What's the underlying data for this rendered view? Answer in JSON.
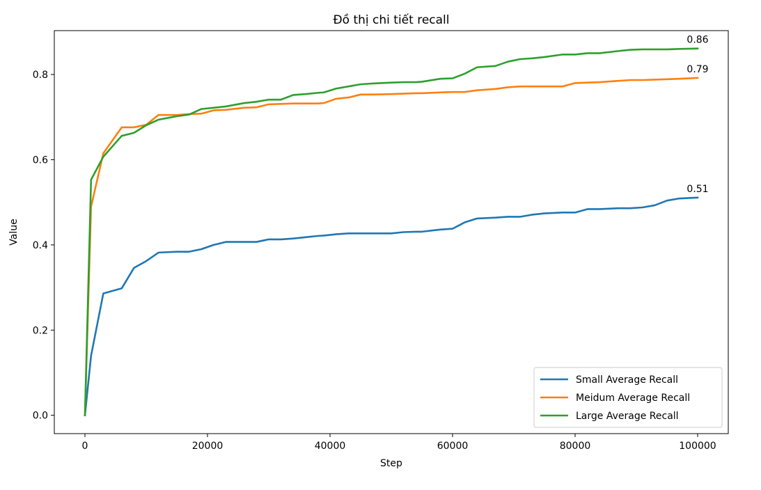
{
  "chart_data": {
    "type": "line",
    "title": "Đồ thị chi tiết recall",
    "xlabel": "Step",
    "ylabel": "Value",
    "xlim": [
      -5000,
      105000
    ],
    "ylim": [
      -0.043,
      0.903
    ],
    "xticks": [
      0,
      20000,
      40000,
      60000,
      80000,
      100000
    ],
    "xtick_labels": [
      "0",
      "20000",
      "40000",
      "60000",
      "80000",
      "100000"
    ],
    "yticks": [
      0.0,
      0.2,
      0.4,
      0.6,
      0.8
    ],
    "ytick_labels": [
      "0.0",
      "0.2",
      "0.4",
      "0.6",
      "0.8"
    ],
    "grid": false,
    "legend_position": "lower-right",
    "x": [
      0,
      1000,
      3000,
      6000,
      8000,
      10000,
      12000,
      15000,
      17000,
      19000,
      21000,
      23000,
      26000,
      28000,
      30000,
      32000,
      34000,
      36000,
      38000,
      39000,
      41000,
      43000,
      45000,
      47000,
      50000,
      52000,
      54000,
      55000,
      58000,
      60000,
      62000,
      64000,
      67000,
      69000,
      71000,
      73000,
      75000,
      78000,
      80000,
      82000,
      84000,
      87000,
      89000,
      91000,
      93000,
      95000,
      97000,
      100000
    ],
    "series": [
      {
        "name": "Small Average Recall",
        "color": "#1f77b4",
        "end_label": "0.51",
        "values": [
          0.0,
          0.14,
          0.286,
          0.298,
          0.346,
          0.362,
          0.382,
          0.384,
          0.384,
          0.39,
          0.4,
          0.407,
          0.407,
          0.407,
          0.413,
          0.413,
          0.415,
          0.418,
          0.421,
          0.422,
          0.425,
          0.427,
          0.427,
          0.427,
          0.427,
          0.43,
          0.431,
          0.431,
          0.436,
          0.438,
          0.453,
          0.462,
          0.464,
          0.466,
          0.466,
          0.471,
          0.474,
          0.476,
          0.476,
          0.484,
          0.484,
          0.486,
          0.486,
          0.488,
          0.493,
          0.504,
          0.509,
          0.511
        ]
      },
      {
        "name": "Meidum Average Recall",
        "color": "#ff7f0e",
        "end_label": "0.79",
        "values": [
          0.0,
          0.49,
          0.615,
          0.676,
          0.676,
          0.682,
          0.705,
          0.705,
          0.707,
          0.708,
          0.716,
          0.717,
          0.722,
          0.723,
          0.73,
          0.731,
          0.732,
          0.732,
          0.732,
          0.733,
          0.743,
          0.746,
          0.753,
          0.753,
          0.754,
          0.755,
          0.756,
          0.756,
          0.758,
          0.759,
          0.759,
          0.763,
          0.766,
          0.77,
          0.772,
          0.772,
          0.772,
          0.772,
          0.78,
          0.781,
          0.782,
          0.785,
          0.787,
          0.787,
          0.788,
          0.789,
          0.79,
          0.792
        ]
      },
      {
        "name": "Large Average Recall",
        "color": "#2ca02c",
        "end_label": "0.86",
        "values": [
          0.0,
          0.553,
          0.607,
          0.656,
          0.663,
          0.681,
          0.694,
          0.702,
          0.706,
          0.719,
          0.722,
          0.725,
          0.733,
          0.736,
          0.741,
          0.741,
          0.752,
          0.754,
          0.757,
          0.758,
          0.767,
          0.772,
          0.777,
          0.779,
          0.781,
          0.782,
          0.782,
          0.783,
          0.79,
          0.791,
          0.802,
          0.817,
          0.82,
          0.83,
          0.836,
          0.838,
          0.841,
          0.847,
          0.847,
          0.85,
          0.85,
          0.855,
          0.858,
          0.859,
          0.859,
          0.859,
          0.86,
          0.861
        ]
      }
    ]
  }
}
